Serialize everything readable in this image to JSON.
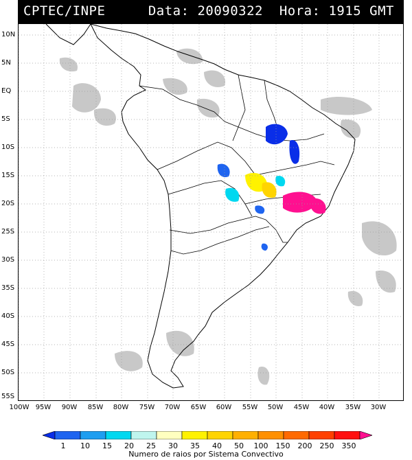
{
  "header": {
    "org": "CPTEC/INPE",
    "info": "Data: 20090322  Hora: 1915 GMT"
  },
  "axes": {
    "lat_labels": [
      "10N",
      "5N",
      "EQ",
      "5S",
      "10S",
      "15S",
      "20S",
      "25S",
      "30S",
      "35S",
      "40S",
      "45S",
      "50S",
      "55S"
    ],
    "lon_labels": [
      "100W",
      "95W",
      "90W",
      "85W",
      "80W",
      "75W",
      "70W",
      "65W",
      "60W",
      "55W",
      "50W",
      "45W",
      "40W",
      "35W",
      "30W"
    ]
  },
  "colorbar": {
    "ticks": [
      "1",
      "10",
      "15",
      "20",
      "25",
      "30",
      "35",
      "40",
      "50",
      "100",
      "150",
      "200",
      "250",
      "350"
    ],
    "colors": [
      "#0a2ee8",
      "#1e64f0",
      "#1e9ef0",
      "#00d8f0",
      "#bff5ee",
      "#ffffc0",
      "#fff200",
      "#ffd400",
      "#ffb000",
      "#ff9000",
      "#ff6a00",
      "#ff4000",
      "#ff1010",
      "#ff1090"
    ],
    "caption": "Numero de raios por Sistema Convectivo"
  },
  "colors": {
    "land_outline": "#000000",
    "cloud_gray": "#c8c8c8",
    "grid": "#9a9a9a"
  }
}
